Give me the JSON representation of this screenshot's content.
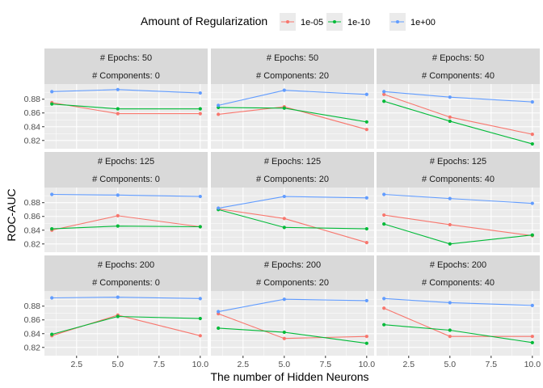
{
  "chart_data": {
    "type": "line",
    "xlabel": "The number of Hidden Neurons",
    "ylabel": "ROC-AUC",
    "xlim": [
      0.55,
      10.45
    ],
    "ylim": [
      0.808,
      0.902
    ],
    "xticks": [
      2.5,
      5.0,
      7.5,
      10.0
    ],
    "xtick_labels": [
      "2.5",
      "5.0",
      "7.5",
      "10.0"
    ],
    "yticks": [
      0.82,
      0.84,
      0.86,
      0.88
    ],
    "ytick_labels": [
      "0.82",
      "0.84",
      "0.86",
      "0.88"
    ],
    "grid": true,
    "legend": {
      "title": "Amount of Regularization",
      "placement": "top",
      "entries": [
        "1e-05",
        "1e-10",
        "1e+00"
      ]
    },
    "colors": {
      "1e-05": "#F8766D",
      "1e-10": "#00BA38",
      "1e+00": "#619CFF"
    },
    "x": [
      1,
      5,
      10
    ],
    "panels": [
      {
        "epochs_label": "# Epochs: 50",
        "components_label": "# Components: 0",
        "series": [
          {
            "name": "1e-05",
            "values": [
              0.875,
              0.859,
              0.859
            ]
          },
          {
            "name": "1e-10",
            "values": [
              0.873,
              0.866,
              0.866
            ]
          },
          {
            "name": "1e+00",
            "values": [
              0.891,
              0.894,
              0.889
            ]
          }
        ]
      },
      {
        "epochs_label": "# Epochs: 50",
        "components_label": "# Components: 20",
        "series": [
          {
            "name": "1e-05",
            "values": [
              0.858,
              0.869,
              0.836
            ]
          },
          {
            "name": "1e-10",
            "values": [
              0.868,
              0.867,
              0.847
            ]
          },
          {
            "name": "1e+00",
            "values": [
              0.871,
              0.893,
              0.887
            ]
          }
        ]
      },
      {
        "epochs_label": "# Epochs: 50",
        "components_label": "# Components: 40",
        "series": [
          {
            "name": "1e-05",
            "values": [
              0.887,
              0.854,
              0.829
            ]
          },
          {
            "name": "1e-10",
            "values": [
              0.877,
              0.848,
              0.815
            ]
          },
          {
            "name": "1e+00",
            "values": [
              0.891,
              0.883,
              0.876
            ]
          }
        ]
      },
      {
        "epochs_label": "# Epochs: 125",
        "components_label": "# Components: 0",
        "series": [
          {
            "name": "1e-05",
            "values": [
              0.84,
              0.861,
              0.845
            ]
          },
          {
            "name": "1e-10",
            "values": [
              0.842,
              0.846,
              0.845
            ]
          },
          {
            "name": "1e+00",
            "values": [
              0.892,
              0.891,
              0.889
            ]
          }
        ]
      },
      {
        "epochs_label": "# Epochs: 125",
        "components_label": "# Components: 20",
        "series": [
          {
            "name": "1e-05",
            "values": [
              0.871,
              0.857,
              0.822
            ]
          },
          {
            "name": "1e-10",
            "values": [
              0.87,
              0.844,
              0.842
            ]
          },
          {
            "name": "1e+00",
            "values": [
              0.872,
              0.889,
              0.887
            ]
          }
        ]
      },
      {
        "epochs_label": "# Epochs: 125",
        "components_label": "# Components: 40",
        "series": [
          {
            "name": "1e-05",
            "values": [
              0.862,
              0.848,
              0.832
            ]
          },
          {
            "name": "1e-10",
            "values": [
              0.849,
              0.82,
              0.833
            ]
          },
          {
            "name": "1e+00",
            "values": [
              0.892,
              0.886,
              0.879
            ]
          }
        ]
      },
      {
        "epochs_label": "# Epochs: 200",
        "components_label": "# Components: 0",
        "series": [
          {
            "name": "1e-05",
            "values": [
              0.837,
              0.867,
              0.837
            ]
          },
          {
            "name": "1e-10",
            "values": [
              0.839,
              0.865,
              0.862
            ]
          },
          {
            "name": "1e+00",
            "values": [
              0.892,
              0.893,
              0.891
            ]
          }
        ]
      },
      {
        "epochs_label": "# Epochs: 200",
        "components_label": "# Components: 20",
        "series": [
          {
            "name": "1e-05",
            "values": [
              0.869,
              0.833,
              0.836
            ]
          },
          {
            "name": "1e-10",
            "values": [
              0.848,
              0.842,
              0.826
            ]
          },
          {
            "name": "1e+00",
            "values": [
              0.872,
              0.89,
              0.888
            ]
          }
        ]
      },
      {
        "epochs_label": "# Epochs: 200",
        "components_label": "# Components: 40",
        "series": [
          {
            "name": "1e-05",
            "values": [
              0.877,
              0.836,
              0.836
            ]
          },
          {
            "name": "1e-10",
            "values": [
              0.853,
              0.845,
              0.827
            ]
          },
          {
            "name": "1e+00",
            "values": [
              0.891,
              0.885,
              0.881
            ]
          }
        ]
      }
    ]
  }
}
